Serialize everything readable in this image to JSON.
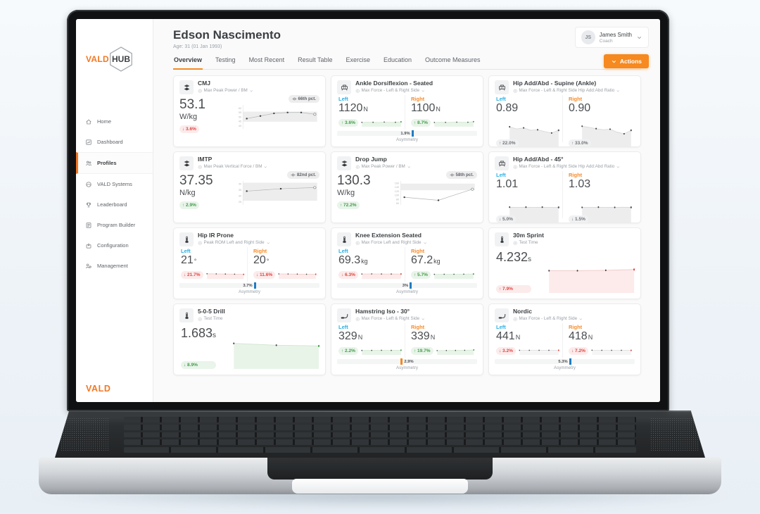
{
  "sidebar": {
    "logo_vald": "VALD",
    "logo_hub": "HUB",
    "footer_logo": "VALD",
    "items": [
      {
        "id": "home",
        "label": "Home",
        "icon": "home-icon",
        "active": false
      },
      {
        "id": "dashboard",
        "label": "Dashboard",
        "icon": "dashboard-icon",
        "active": false
      },
      {
        "id": "profiles",
        "label": "Profiles",
        "icon": "profiles-icon",
        "active": true
      },
      {
        "id": "vald-systems",
        "label": "VALD Systems",
        "icon": "systems-icon",
        "active": false
      },
      {
        "id": "leaderboard",
        "label": "Leaderboard",
        "icon": "leaderboard-icon",
        "active": false
      },
      {
        "id": "program-builder",
        "label": "Program Builder",
        "icon": "program-builder-icon",
        "active": false
      },
      {
        "id": "configuration",
        "label": "Configuration",
        "icon": "configuration-icon",
        "active": false
      },
      {
        "id": "management",
        "label": "Management",
        "icon": "management-icon",
        "active": false
      }
    ]
  },
  "header": {
    "name": "Edson Nascimento",
    "age": "Age: 31 (01 Jan 1993)",
    "user": {
      "initials": "JS",
      "name": "James Smith",
      "role": "Coach"
    },
    "actions_label": "Actions",
    "tabs": [
      {
        "label": "Overview",
        "active": true
      },
      {
        "label": "Testing",
        "active": false
      },
      {
        "label": "Most Recent",
        "active": false
      },
      {
        "label": "Result Table",
        "active": false
      },
      {
        "label": "Exercise",
        "active": false
      },
      {
        "label": "Education",
        "active": false
      },
      {
        "label": "Outcome Measures",
        "active": false
      }
    ]
  },
  "lr_labels": {
    "left": "Left",
    "right": "Right"
  },
  "colors": {
    "accent_orange": "#f6891f",
    "vald_orange": "#f47721",
    "left_blue": "#2ab0e3",
    "right_orange": "#f68d2e",
    "asym_blue": "#1f7dc4",
    "positive_green": "#3f9d46",
    "negative_red": "#e04540"
  },
  "cards": [
    {
      "id": "cmj",
      "type": "trend",
      "device": "forcedecks-icon",
      "title": "CMJ",
      "subtitle": "Max Peak Power / BM",
      "chevron": true,
      "value": "53.1",
      "unit": "W/kg",
      "change": {
        "dir": "down",
        "text": "3.6%",
        "tone": "red"
      },
      "percentile": "66th pct.",
      "chart": {
        "yticks": [
          60,
          55,
          50,
          45,
          40
        ],
        "ymin": 37,
        "ymax": 63,
        "band": [
          44.5,
          56
        ],
        "points": [
          48,
          51,
          54,
          55,
          55,
          53
        ]
      }
    },
    {
      "id": "ankle-dorsiflexion-seated",
      "type": "leftright",
      "device": "forceframe-icon",
      "title": "Ankle Dorsiflexion - Seated",
      "subtitle": "Max Force - Left & Right Side",
      "chevron": true,
      "left": {
        "value": "1120",
        "unit": "N",
        "change": {
          "dir": "up",
          "text": "3.6%",
          "tone": "green"
        },
        "spark": {
          "tone": "green",
          "points": [
            5.2,
            5.6,
            5.3,
            5.1,
            5.7,
            5.4,
            5.3,
            6.1
          ]
        }
      },
      "right": {
        "value": "1100",
        "unit": "N",
        "change": {
          "dir": "up",
          "text": "8.7%",
          "tone": "green"
        },
        "spark": {
          "tone": "green",
          "points": [
            5.1,
            5.4,
            5.2,
            5.3,
            5.5,
            5.3,
            5.4,
            6.3
          ]
        }
      },
      "asym": {
        "value": "1.9%",
        "color": "blue",
        "order": "text-bar",
        "label": "Asymmetry"
      }
    },
    {
      "id": "hip-add-abd-supine-ankle",
      "type": "leftright-tall",
      "device": "forceframe-icon",
      "title": "Hip Add/Abd - Supine (Ankle)",
      "subtitle": "Max Force - Left & Right Side Hip Add:Abd Ratio",
      "chevron": true,
      "left": {
        "value": "0.89",
        "unit": "",
        "change": {
          "dir": "up",
          "text": "22.0%",
          "tone": "gray"
        },
        "spark": {
          "tone": "gray",
          "points": [
            7.2,
            6.4,
            6.8,
            5.9,
            6.1,
            5.4,
            4.9,
            5.9
          ]
        }
      },
      "right": {
        "value": "0.90",
        "unit": "",
        "change": {
          "dir": "up",
          "text": "33.0%",
          "tone": "gray"
        },
        "spark": {
          "tone": "gray",
          "points": [
            7.4,
            7.0,
            6.5,
            6.1,
            6.3,
            5.2,
            4.6,
            5.9
          ]
        }
      }
    },
    {
      "id": "imtp",
      "type": "trend",
      "device": "forcedecks-icon",
      "title": "IMTP",
      "subtitle": "Max Peak Vertical Force / BM",
      "chevron": true,
      "value": "37.35",
      "unit": "N/kg",
      "change": {
        "dir": "up",
        "text": "2.9%",
        "tone": "green"
      },
      "percentile": "82nd pct.",
      "chart": {
        "yticks": [
          40,
          35,
          30,
          25
        ],
        "ymin": 23,
        "ymax": 42,
        "band": [
          26,
          41
        ],
        "points": [
          34,
          36,
          37
        ]
      }
    },
    {
      "id": "drop-jump",
      "type": "trend",
      "device": "forcedecks-icon",
      "title": "Drop Jump",
      "subtitle": "Max Peak Power / BM",
      "chevron": true,
      "value": "130.3",
      "unit": "W/kg",
      "change": {
        "dir": "up",
        "text": "72.2%",
        "tone": "green"
      },
      "percentile": "58th pct.",
      "chart": {
        "yticks": [
          160,
          140,
          120,
          100,
          80,
          60
        ],
        "ymin": 55,
        "ymax": 168,
        "band": [
          125,
          158
        ],
        "points": [
          90,
          75,
          130
        ]
      }
    },
    {
      "id": "hip-add-abd-45",
      "type": "leftright-tall",
      "device": "forceframe-icon",
      "title": "Hip Add/Abd - 45°",
      "subtitle": "Max Force - Left & Right Side Hip Add:Abd Ratio",
      "chevron": true,
      "left": {
        "value": "1.01",
        "unit": "",
        "change": {
          "dir": "down",
          "text": "5.0%",
          "tone": "gray"
        },
        "spark": {
          "tone": "gray",
          "points": [
            5.6,
            5.5,
            5.6,
            5.5,
            5.6,
            5.5,
            5.5
          ]
        }
      },
      "right": {
        "value": "1.03",
        "unit": "",
        "change": {
          "dir": "down",
          "text": "1.5%",
          "tone": "gray"
        },
        "spark": {
          "tone": "gray",
          "points": [
            5.5,
            5.5,
            5.6,
            5.5,
            5.5,
            5.6,
            5.5
          ]
        }
      }
    },
    {
      "id": "hip-ir-prone",
      "type": "leftright",
      "device": "dynamo-icon",
      "title": "Hip IR Prone",
      "subtitle": "Peak ROM Left and Right Side",
      "chevron": true,
      "left": {
        "value": "21",
        "unit": "°",
        "change": {
          "dir": "down",
          "text": "21.7%",
          "tone": "red"
        },
        "spark": {
          "tone": "red",
          "points": [
            6.3,
            6.1,
            5.9,
            5.7,
            5.3
          ]
        }
      },
      "right": {
        "value": "20",
        "unit": "°",
        "change": {
          "dir": "down",
          "text": "11.6%",
          "tone": "red"
        },
        "spark": {
          "tone": "red",
          "points": [
            6.1,
            6.0,
            5.8,
            5.6,
            5.5
          ]
        }
      },
      "asym": {
        "value": "3.7%",
        "color": "blue",
        "order": "text-bar",
        "label": "Asymmetry"
      }
    },
    {
      "id": "knee-extension-seated",
      "type": "leftright",
      "device": "dynamo-icon",
      "title": "Knee Extension Seated",
      "subtitle": "Max Force Left and Right Side",
      "chevron": true,
      "left": {
        "value": "69.3",
        "unit": "kg",
        "change": {
          "dir": "down",
          "text": "6.3%",
          "tone": "red"
        },
        "spark": {
          "tone": "red",
          "points": [
            6.0,
            6.1,
            6.0,
            5.9,
            6.0
          ]
        }
      },
      "right": {
        "value": "67.2",
        "unit": "kg",
        "change": {
          "dir": "up",
          "text": "5.7%",
          "tone": "green"
        },
        "spark": {
          "tone": "green",
          "points": [
            5.4,
            5.5,
            5.6,
            5.7,
            6.0
          ]
        }
      },
      "asym": {
        "value": "3%",
        "color": "blue",
        "order": "text-bar",
        "label": "Asymmetry"
      }
    },
    {
      "id": "30m-sprint",
      "type": "single-area",
      "device": "dynamo-icon",
      "title": "30m Sprint",
      "subtitle": "Test Time",
      "chevron": false,
      "value": "4.232",
      "unit": "s",
      "change": {
        "dir": "up",
        "text": "7.9%",
        "tone": "red"
      },
      "area": {
        "tone": "red",
        "points": [
          5.7,
          5.7,
          5.8,
          6.0
        ]
      }
    },
    {
      "id": "5-0-5-drill",
      "type": "single-area",
      "device": "dynamo-icon",
      "title": "5-0-5 Drill",
      "subtitle": "Test Time",
      "chevron": false,
      "value": "1.683",
      "unit": "s",
      "change": {
        "dir": "down",
        "text": "8.9%",
        "tone": "green"
      },
      "area": {
        "tone": "green",
        "points": [
          6.6,
          6.1,
          5.9
        ]
      }
    },
    {
      "id": "hamstring-iso-30",
      "type": "leftright",
      "device": "nordbord-icon",
      "title": "Hamstring Iso - 30°",
      "subtitle": "Max Force - Left & Right Side",
      "chevron": true,
      "left": {
        "value": "329",
        "unit": "N",
        "change": {
          "dir": "up",
          "text": "2.2%",
          "tone": "green"
        },
        "spark": {
          "tone": "green",
          "points": [
            5.3,
            5.4,
            5.5,
            5.4,
            5.7
          ]
        }
      },
      "right": {
        "value": "339",
        "unit": "N",
        "change": {
          "dir": "up",
          "text": "19.7%",
          "tone": "green"
        },
        "spark": {
          "tone": "green",
          "points": [
            5.1,
            5.2,
            5.3,
            5.5,
            6.1
          ]
        }
      },
      "asym": {
        "value": "2.9%",
        "color": "orange",
        "order": "bar-text",
        "label": "Asymmetry"
      }
    },
    {
      "id": "nordic",
      "type": "leftright",
      "device": "nordbord-icon",
      "title": "Nordic",
      "subtitle": "Max Force - Left & Right Side",
      "chevron": true,
      "left": {
        "value": "441",
        "unit": "N",
        "change": {
          "dir": "down",
          "text": "3.2%",
          "tone": "red"
        },
        "spark": {
          "tone": "faint",
          "points": [
            5.6,
            5.5,
            5.6,
            5.5,
            5.6
          ]
        }
      },
      "right": {
        "value": "418",
        "unit": "N",
        "change": {
          "dir": "down",
          "text": "7.2%",
          "tone": "red"
        },
        "spark": {
          "tone": "faint",
          "points": [
            5.7,
            5.6,
            5.5,
            5.5,
            5.4
          ]
        }
      },
      "asym": {
        "value": "5.3%",
        "color": "blue",
        "order": "text-bar",
        "label": "Asymmetry"
      }
    }
  ]
}
